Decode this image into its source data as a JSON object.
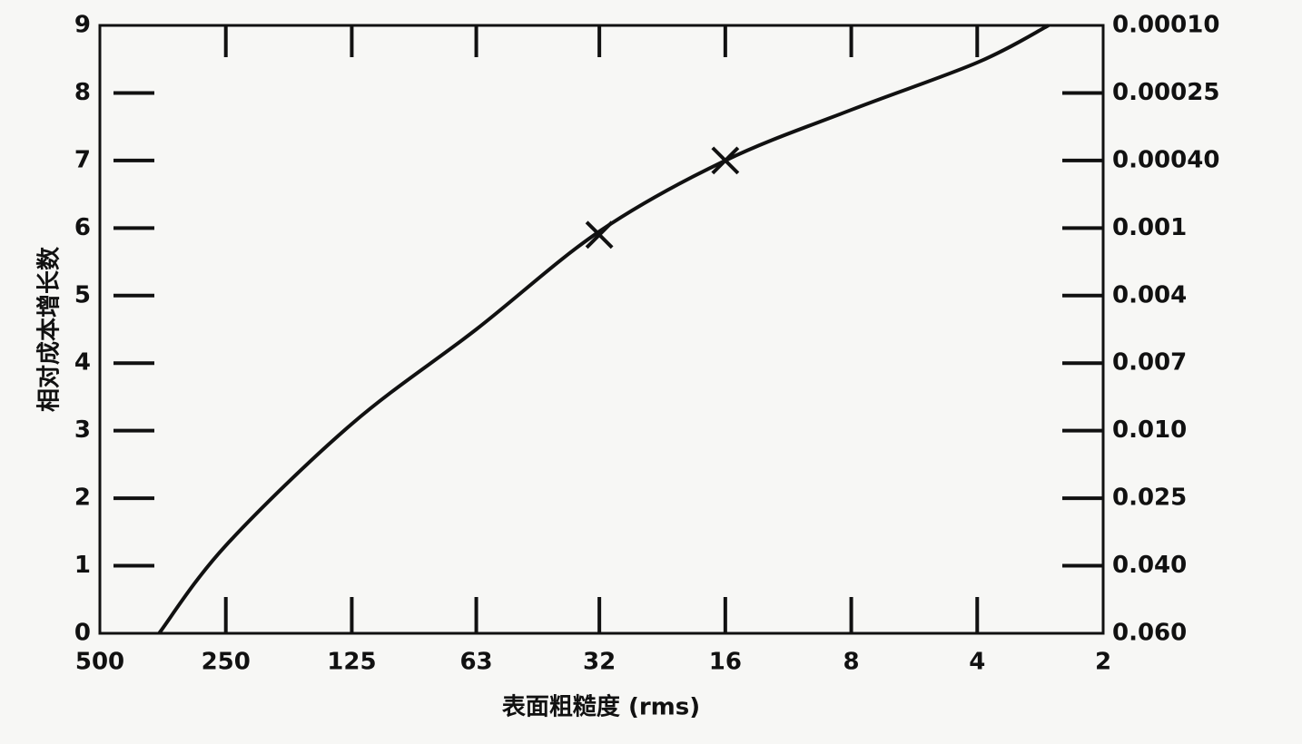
{
  "chart_data": {
    "type": "line",
    "ylabel": "相对成本增长数",
    "xlabel": "表面粗糙度 (rms)",
    "xscale": "log",
    "xlim": [
      500,
      2
    ],
    "xticks": [
      500,
      250,
      125,
      63,
      32,
      16,
      8,
      4,
      2
    ],
    "ylim": [
      0,
      9
    ],
    "yticks": [
      0,
      1,
      2,
      3,
      4,
      5,
      6,
      7,
      8,
      9
    ],
    "y2tick_labels": [
      "0.060",
      "0.040",
      "0.025",
      "0.010",
      "0.007",
      "0.004",
      "0.001",
      "0.00040",
      "0.00025",
      "0.00010"
    ],
    "color": "#111111",
    "series": [
      {
        "color": "#111111",
        "x": [
          361,
          250,
          125,
          63,
          32,
          16,
          8,
          4,
          2.7
        ],
        "values": [
          0,
          1.3,
          3.1,
          4.5,
          5.95,
          7.0,
          7.75,
          8.45,
          9
        ]
      }
    ],
    "markers": {
      "x": [
        32,
        16
      ],
      "values": [
        5.9,
        7.0
      ]
    }
  }
}
